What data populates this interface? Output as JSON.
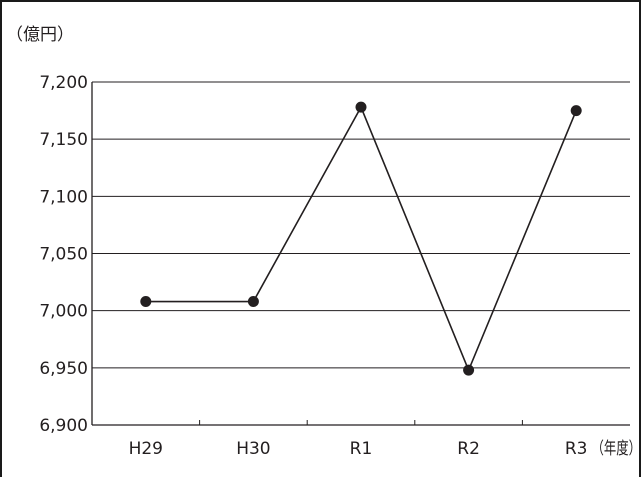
{
  "chart_data": {
    "type": "line",
    "y_unit_label": "（億円）",
    "x_unit_label": "（年度）",
    "categories": [
      "H29",
      "H30",
      "R1",
      "R2",
      "R3"
    ],
    "values": [
      7008,
      7008,
      7178,
      6948,
      7175
    ],
    "ylim": [
      6900,
      7200
    ],
    "yticks": [
      6900,
      6950,
      7000,
      7050,
      7100,
      7150,
      7200
    ],
    "ytick_labels": [
      "6,900",
      "6,950",
      "7,000",
      "7,050",
      "7,100",
      "7,150",
      "7,200"
    ],
    "grid": true,
    "colors": {
      "line": "#231f20",
      "marker": "#231f20",
      "grid": "#231f20",
      "axis": "#231f20"
    }
  }
}
